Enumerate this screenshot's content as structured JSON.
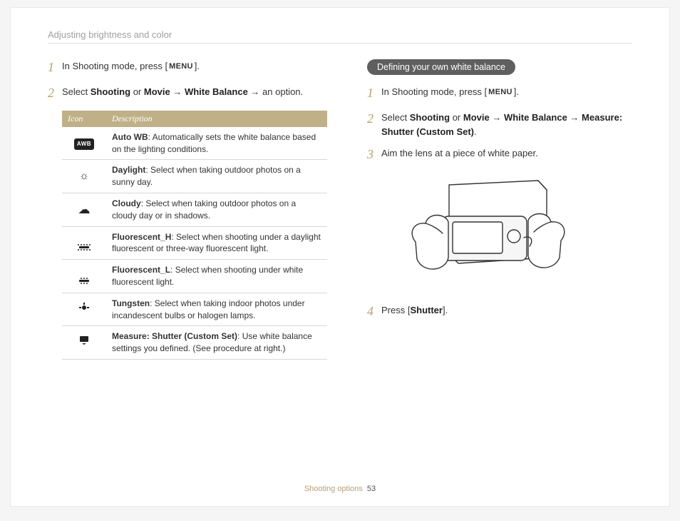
{
  "header": "Adjusting brightness and color",
  "left": {
    "step1_pre": "In Shooting mode, press [",
    "step1_menu": "MENU",
    "step1_post": "].",
    "step2_a": "Select ",
    "step2_b": "Shooting",
    "step2_c": " or ",
    "step2_d": "Movie",
    "step2_e": " → ",
    "step2_f": "White Balance",
    "step2_g": " → an option.",
    "table": {
      "col_icon": "Icon",
      "col_desc": "Description",
      "rows": [
        {
          "icon": "AWB",
          "term": "Auto WB",
          "desc": ": Automatically sets the white balance based on the lighting conditions."
        },
        {
          "icon": "☀",
          "term": "Daylight",
          "desc": ": Select when taking outdoor photos on a sunny day."
        },
        {
          "icon": "☁",
          "term": "Cloudy",
          "desc": ": Select when taking outdoor photos on a cloudy day or in shadows."
        },
        {
          "icon": "FLH",
          "term": "Fluorescent_H",
          "desc": ": Select when shooting under a daylight fluorescent or three-way fluorescent light."
        },
        {
          "icon": "FLL",
          "term": "Fluorescent_L",
          "desc": ": Select when shooting under white fluorescent light."
        },
        {
          "icon": "TUN",
          "term": "Tungsten",
          "desc": ": Select when taking indoor photos under incandescent bulbs or halogen lamps."
        },
        {
          "icon": "CUS",
          "term": "Measure: Shutter (Custom Set)",
          "desc": ": Use white balance settings you defined. (See procedure at right.)"
        }
      ]
    }
  },
  "right": {
    "pill": "Defining your own white balance",
    "step1_pre": "In Shooting mode, press [",
    "step1_menu": "MENU",
    "step1_post": "].",
    "step2_a": "Select ",
    "step2_b": "Shooting",
    "step2_c": " or ",
    "step2_d": "Movie",
    "step2_e": " → ",
    "step2_f": "White Balance",
    "step2_g": " → ",
    "step2_h": "Measure: Shutter (Custom Set)",
    "step2_i": ".",
    "step3": "Aim the lens at a piece of white paper.",
    "step4_a": "Press [",
    "step4_b": "Shutter",
    "step4_c": "]."
  },
  "footer": {
    "section": "Shooting options",
    "page": "53"
  },
  "numbers": {
    "n1": "1",
    "n2": "2",
    "n3": "3",
    "n4": "4"
  },
  "colors": {
    "accent": "#b9a26b",
    "table_header_bg": "#c0b088",
    "pill_bg": "#5f5f5f",
    "text": "#333333",
    "muted": "#a0a0a0"
  }
}
